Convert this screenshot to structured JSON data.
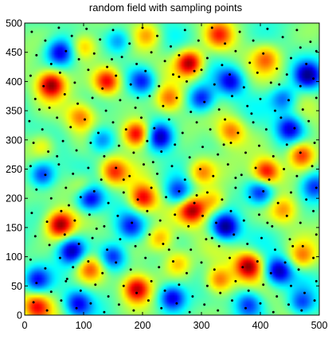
{
  "chart_data": {
    "type": "heatmap",
    "title": "random field with sampling points",
    "xlabel": "",
    "ylabel": "",
    "xlim": [
      0,
      500
    ],
    "ylim": [
      0,
      500
    ],
    "x_ticks": [
      0,
      100,
      200,
      300,
      400,
      500
    ],
    "y_ticks": [
      0,
      50,
      100,
      150,
      200,
      250,
      300,
      350,
      400,
      450,
      500
    ],
    "colormap": [
      "#00008f",
      "#0000ff",
      "#0080ff",
      "#00ffff",
      "#80ff80",
      "#ffff00",
      "#ff8000",
      "#ff0000",
      "#800000"
    ],
    "grid": false,
    "legend": "none",
    "hot_spots": [
      {
        "x": 45,
        "y": 395,
        "v": 2.6
      },
      {
        "x": 140,
        "y": 400,
        "v": 2.4
      },
      {
        "x": 280,
        "y": 432,
        "v": 2.7
      },
      {
        "x": 190,
        "y": 310,
        "v": 2.6
      },
      {
        "x": 245,
        "y": 370,
        "v": 1.6
      },
      {
        "x": 150,
        "y": 245,
        "v": 1.8
      },
      {
        "x": 200,
        "y": 200,
        "v": 2.2
      },
      {
        "x": 60,
        "y": 155,
        "v": 2.6
      },
      {
        "x": 190,
        "y": 45,
        "v": 2.5
      },
      {
        "x": 380,
        "y": 85,
        "v": 2.5
      },
      {
        "x": 285,
        "y": 180,
        "v": 2.4
      },
      {
        "x": 410,
        "y": 245,
        "v": 2.3
      },
      {
        "x": 470,
        "y": 275,
        "v": 2.2
      },
      {
        "x": 330,
        "y": 60,
        "v": 1.8
      },
      {
        "x": 20,
        "y": 15,
        "v": 1.8
      },
      {
        "x": 110,
        "y": 80,
        "v": 1.6
      },
      {
        "x": 350,
        "y": 315,
        "v": 1.5
      },
      {
        "x": 95,
        "y": 340,
        "v": 1.4
      },
      {
        "x": 100,
        "y": 460,
        "v": 1.4
      },
      {
        "x": 330,
        "y": 480,
        "v": 1.5
      },
      {
        "x": 320,
        "y": 195,
        "v": 1.4
      },
      {
        "x": 300,
        "y": 245,
        "v": 1.5
      },
      {
        "x": 470,
        "y": 100,
        "v": 1.4
      },
      {
        "x": 230,
        "y": 130,
        "v": 1.5
      },
      {
        "x": 30,
        "y": 290,
        "v": 1.2
      },
      {
        "x": 440,
        "y": 180,
        "v": 1.2
      },
      {
        "x": 100,
        "y": 220,
        "v": 1.2
      },
      {
        "x": 410,
        "y": 440,
        "v": 1.3
      },
      {
        "x": 210,
        "y": 480,
        "v": 1.2
      },
      {
        "x": 260,
        "y": 90,
        "v": 1.3
      }
    ],
    "cold_spots": [
      {
        "x": 340,
        "y": 150,
        "v": -2.6
      },
      {
        "x": 230,
        "y": 305,
        "v": -2.4
      },
      {
        "x": 80,
        "y": 110,
        "v": -2.3
      },
      {
        "x": 110,
        "y": 200,
        "v": -2.4
      },
      {
        "x": 250,
        "y": 30,
        "v": -2.2
      },
      {
        "x": 430,
        "y": 75,
        "v": -2.3
      },
      {
        "x": 480,
        "y": 410,
        "v": -2.3
      },
      {
        "x": 300,
        "y": 370,
        "v": -2.0
      },
      {
        "x": 30,
        "y": 240,
        "v": -2.1
      },
      {
        "x": 450,
        "y": 320,
        "v": -2.0
      },
      {
        "x": 150,
        "y": 100,
        "v": -2.0
      },
      {
        "x": 60,
        "y": 450,
        "v": -2.0
      },
      {
        "x": 400,
        "y": 210,
        "v": -2.0
      },
      {
        "x": 200,
        "y": 400,
        "v": -1.8
      },
      {
        "x": 350,
        "y": 400,
        "v": -1.8
      },
      {
        "x": 20,
        "y": 60,
        "v": -1.8
      },
      {
        "x": 90,
        "y": 20,
        "v": -1.8
      },
      {
        "x": 470,
        "y": 20,
        "v": -1.7
      },
      {
        "x": 260,
        "y": 210,
        "v": -1.8
      },
      {
        "x": 380,
        "y": 20,
        "v": -1.6
      },
      {
        "x": 180,
        "y": 150,
        "v": -1.6
      },
      {
        "x": 490,
        "y": 220,
        "v": -1.6
      },
      {
        "x": 160,
        "y": 470,
        "v": -1.5
      },
      {
        "x": 130,
        "y": 300,
        "v": -1.6
      },
      {
        "x": 440,
        "y": 370,
        "v": -1.6
      }
    ],
    "sampling_points": [
      [
        12,
        485
      ],
      [
        35,
        470
      ],
      [
        58,
        492
      ],
      [
        80,
        478
      ],
      [
        105,
        490
      ],
      [
        128,
        472
      ],
      [
        150,
        488
      ],
      [
        178,
        465
      ],
      [
        200,
        492
      ],
      [
        225,
        478
      ],
      [
        248,
        460
      ],
      [
        272,
        488
      ],
      [
        295,
        470
      ],
      [
        318,
        492
      ],
      [
        340,
        465
      ],
      [
        365,
        485
      ],
      [
        388,
        470
      ],
      [
        412,
        490
      ],
      [
        438,
        476
      ],
      [
        462,
        488
      ],
      [
        485,
        468
      ],
      [
        20,
        445
      ],
      [
        45,
        430
      ],
      [
        70,
        452
      ],
      [
        92,
        438
      ],
      [
        118,
        448
      ],
      [
        140,
        425
      ],
      [
        165,
        442
      ],
      [
        190,
        430
      ],
      [
        215,
        450
      ],
      [
        238,
        435
      ],
      [
        262,
        445
      ],
      [
        288,
        418
      ],
      [
        310,
        440
      ],
      [
        335,
        428
      ],
      [
        358,
        452
      ],
      [
        382,
        432
      ],
      [
        405,
        448
      ],
      [
        428,
        422
      ],
      [
        452,
        440
      ],
      [
        478,
        430
      ],
      [
        495,
        452
      ],
      [
        10,
        410
      ],
      [
        32,
        392
      ],
      [
        60,
        415
      ],
      [
        85,
        398
      ],
      [
        108,
        420
      ],
      [
        132,
        388
      ],
      [
        155,
        410
      ],
      [
        180,
        395
      ],
      [
        205,
        418
      ],
      [
        228,
        392
      ],
      [
        252,
        412
      ],
      [
        275,
        400
      ],
      [
        300,
        420
      ],
      [
        322,
        395
      ],
      [
        348,
        412
      ],
      [
        372,
        390
      ],
      [
        395,
        415
      ],
      [
        418,
        398
      ],
      [
        445,
        412
      ],
      [
        468,
        392
      ],
      [
        490,
        405
      ],
      [
        18,
        370
      ],
      [
        42,
        355
      ],
      [
        68,
        378
      ],
      [
        90,
        362
      ],
      [
        115,
        372
      ],
      [
        138,
        350
      ],
      [
        162,
        368
      ],
      [
        188,
        355
      ],
      [
        212,
        375
      ],
      [
        235,
        358
      ],
      [
        258,
        372
      ],
      [
        282,
        348
      ],
      [
        305,
        365
      ],
      [
        330,
        352
      ],
      [
        352,
        375
      ],
      [
        378,
        358
      ],
      [
        400,
        370
      ],
      [
        425,
        350
      ],
      [
        448,
        368
      ],
      [
        472,
        352
      ],
      [
        495,
        372
      ],
      [
        8,
        332
      ],
      [
        30,
        318
      ],
      [
        55,
        338
      ],
      [
        78,
        322
      ],
      [
        102,
        335
      ],
      [
        125,
        312
      ],
      [
        150,
        330
      ],
      [
        172,
        318
      ],
      [
        198,
        338
      ],
      [
        220,
        320
      ],
      [
        245,
        335
      ],
      [
        268,
        312
      ],
      [
        292,
        330
      ],
      [
        315,
        318
      ],
      [
        340,
        335
      ],
      [
        362,
        312
      ],
      [
        388,
        330
      ],
      [
        410,
        318
      ],
      [
        435,
        338
      ],
      [
        458,
        320
      ],
      [
        482,
        332
      ],
      [
        15,
        295
      ],
      [
        40,
        280
      ],
      [
        65,
        298
      ],
      [
        88,
        282
      ],
      [
        112,
        295
      ],
      [
        135,
        272
      ],
      [
        160,
        290
      ],
      [
        185,
        278
      ],
      [
        208,
        298
      ],
      [
        232,
        280
      ],
      [
        255,
        292
      ],
      [
        280,
        270
      ],
      [
        302,
        288
      ],
      [
        328,
        275
      ],
      [
        350,
        295
      ],
      [
        375,
        278
      ],
      [
        398,
        290
      ],
      [
        422,
        272
      ],
      [
        445,
        292
      ],
      [
        468,
        278
      ],
      [
        492,
        295
      ],
      [
        10,
        255
      ],
      [
        35,
        240
      ],
      [
        58,
        258
      ],
      [
        82,
        242
      ],
      [
        108,
        252
      ],
      [
        130,
        232
      ],
      [
        155,
        252
      ],
      [
        178,
        238
      ],
      [
        202,
        258
      ],
      [
        225,
        242
      ],
      [
        250,
        255
      ],
      [
        272,
        232
      ],
      [
        298,
        250
      ],
      [
        320,
        238
      ],
      [
        345,
        258
      ],
      [
        368,
        240
      ],
      [
        392,
        252
      ],
      [
        415,
        232
      ],
      [
        440,
        250
      ],
      [
        462,
        238
      ],
      [
        488,
        255
      ],
      [
        20,
        215
      ],
      [
        45,
        200
      ],
      [
        70,
        218
      ],
      [
        95,
        202
      ],
      [
        118,
        212
      ],
      [
        142,
        192
      ],
      [
        168,
        210
      ],
      [
        192,
        198
      ],
      [
        215,
        218
      ],
      [
        240,
        202
      ],
      [
        262,
        212
      ],
      [
        288,
        192
      ],
      [
        310,
        210
      ],
      [
        335,
        198
      ],
      [
        358,
        218
      ],
      [
        382,
        202
      ],
      [
        405,
        212
      ],
      [
        430,
        192
      ],
      [
        452,
        210
      ],
      [
        478,
        198
      ],
      [
        495,
        218
      ],
      [
        12,
        175
      ],
      [
        38,
        160
      ],
      [
        62,
        178
      ],
      [
        85,
        162
      ],
      [
        110,
        172
      ],
      [
        135,
        152
      ],
      [
        158,
        170
      ],
      [
        182,
        158
      ],
      [
        208,
        178
      ],
      [
        230,
        162
      ],
      [
        255,
        172
      ],
      [
        278,
        152
      ],
      [
        302,
        170
      ],
      [
        325,
        158
      ],
      [
        350,
        178
      ],
      [
        372,
        162
      ],
      [
        398,
        172
      ],
      [
        420,
        152
      ],
      [
        445,
        170
      ],
      [
        468,
        158
      ],
      [
        490,
        178
      ],
      [
        18,
        135
      ],
      [
        42,
        120
      ],
      [
        68,
        138
      ],
      [
        92,
        122
      ],
      [
        115,
        132
      ],
      [
        140,
        112
      ],
      [
        162,
        130
      ],
      [
        188,
        118
      ],
      [
        212,
        138
      ],
      [
        235,
        122
      ],
      [
        260,
        132
      ],
      [
        282,
        112
      ],
      [
        308,
        130
      ],
      [
        330,
        118
      ],
      [
        355,
        138
      ],
      [
        378,
        122
      ],
      [
        402,
        132
      ],
      [
        425,
        112
      ],
      [
        450,
        130
      ],
      [
        472,
        118
      ],
      [
        495,
        138
      ],
      [
        10,
        95
      ],
      [
        35,
        80
      ],
      [
        60,
        98
      ],
      [
        82,
        82
      ],
      [
        108,
        92
      ],
      [
        132,
        72
      ],
      [
        155,
        90
      ],
      [
        180,
        78
      ],
      [
        205,
        98
      ],
      [
        228,
        82
      ],
      [
        252,
        92
      ],
      [
        275,
        72
      ],
      [
        300,
        90
      ],
      [
        322,
        78
      ],
      [
        348,
        98
      ],
      [
        370,
        82
      ],
      [
        395,
        92
      ],
      [
        418,
        72
      ],
      [
        442,
        90
      ],
      [
        465,
        78
      ],
      [
        490,
        98
      ],
      [
        20,
        55
      ],
      [
        45,
        40
      ],
      [
        70,
        58
      ],
      [
        95,
        42
      ],
      [
        120,
        52
      ],
      [
        142,
        32
      ],
      [
        168,
        50
      ],
      [
        190,
        38
      ],
      [
        215,
        58
      ],
      [
        238,
        42
      ],
      [
        262,
        52
      ],
      [
        285,
        32
      ],
      [
        310,
        50
      ],
      [
        332,
        38
      ],
      [
        358,
        58
      ],
      [
        380,
        42
      ],
      [
        405,
        52
      ],
      [
        428,
        32
      ],
      [
        452,
        50
      ],
      [
        475,
        38
      ],
      [
        495,
        58
      ],
      [
        15,
        22
      ],
      [
        38,
        8
      ],
      [
        62,
        25
      ],
      [
        88,
        12
      ],
      [
        112,
        20
      ],
      [
        135,
        5
      ],
      [
        160,
        18
      ],
      [
        185,
        8
      ],
      [
        210,
        25
      ],
      [
        232,
        12
      ],
      [
        258,
        20
      ],
      [
        280,
        5
      ],
      [
        305,
        18
      ],
      [
        328,
        8
      ],
      [
        352,
        25
      ],
      [
        375,
        12
      ],
      [
        400,
        20
      ],
      [
        422,
        5
      ],
      [
        448,
        18
      ],
      [
        470,
        8
      ],
      [
        492,
        25
      ],
      [
        25,
        352
      ],
      [
        55,
        272
      ],
      [
        75,
        188
      ],
      [
        122,
        148
      ],
      [
        168,
        232
      ],
      [
        218,
        262
      ],
      [
        245,
        112
      ],
      [
        292,
        205
      ],
      [
        338,
        292
      ],
      [
        385,
        345
      ],
      [
        432,
        395
      ],
      [
        468,
        458
      ],
      [
        148,
        438
      ],
      [
        72,
        62
      ],
      [
        318,
        132
      ],
      [
        412,
        158
      ],
      [
        262,
        408
      ],
      [
        192,
        372
      ],
      [
        358,
        235
      ],
      [
        455,
        118
      ]
    ]
  }
}
